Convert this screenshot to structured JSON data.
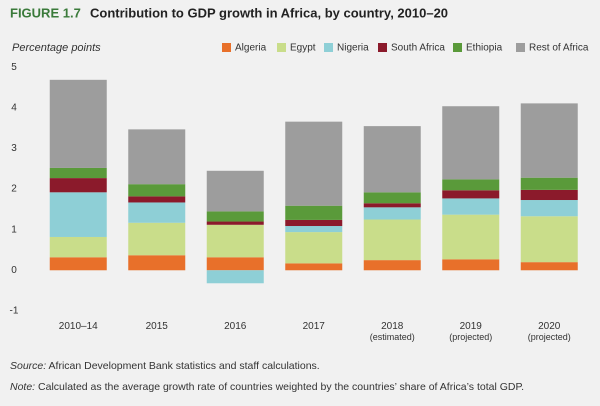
{
  "chart_data": {
    "type": "stacked-bar",
    "figure_label": "FIGURE 1.7",
    "title": "Contribution to GDP growth in Africa, by country, 2010–20",
    "y_axis_label": "Percentage points",
    "categories": [
      "2010–14",
      "2015",
      "2016",
      "2017",
      "2018\n(estimated)",
      "2019\n(projected)",
      "2020\n(projected)"
    ],
    "series": [
      {
        "name": "Algeria",
        "color": "#e8702a",
        "values": [
          0.32,
          0.37,
          0.32,
          0.17,
          0.25,
          0.27,
          0.2
        ]
      },
      {
        "name": "Egypt",
        "color": "#c9dd8a",
        "values": [
          0.5,
          0.8,
          0.8,
          0.77,
          1.0,
          1.1,
          1.13
        ]
      },
      {
        "name": "Nigeria",
        "color": "#8ecfd6",
        "values": [
          1.1,
          0.5,
          -0.32,
          0.15,
          0.3,
          0.4,
          0.4
        ]
      },
      {
        "name": "South Africa",
        "color": "#8b1a2b",
        "values": [
          0.35,
          0.15,
          0.08,
          0.15,
          0.1,
          0.2,
          0.25
        ]
      },
      {
        "name": "Ethiopia",
        "color": "#5a9a3a",
        "values": [
          0.25,
          0.3,
          0.25,
          0.35,
          0.27,
          0.27,
          0.3
        ]
      },
      {
        "name": "Rest of Africa",
        "color": "#9d9d9d",
        "values": [
          2.17,
          1.35,
          1.0,
          2.07,
          1.63,
          1.8,
          1.83
        ]
      }
    ],
    "ylim": [
      -1.2,
      5.4
    ],
    "yticks": [
      -1,
      0,
      1,
      2,
      3,
      4,
      5
    ],
    "grid": false,
    "source_label": "Source:",
    "source": "African Development Bank statistics and staff calculations.",
    "note_label": "Note:",
    "note": "Calculated as the average growth rate of countries weighted by the countries’ share of Africa’s total GDP."
  }
}
